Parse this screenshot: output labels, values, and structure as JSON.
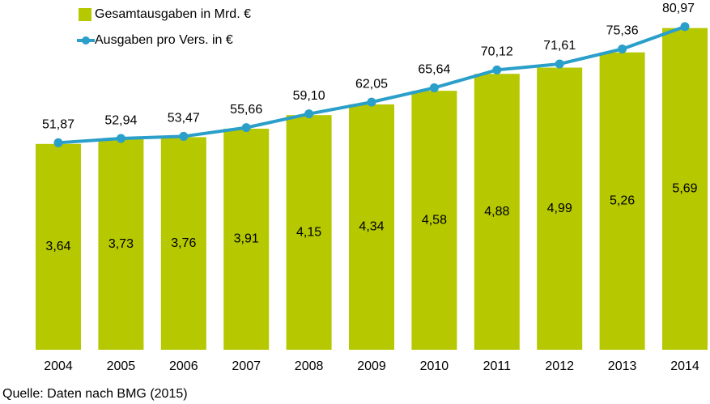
{
  "chart_data": {
    "type": "bar_line",
    "categories": [
      "2004",
      "2005",
      "2006",
      "2007",
      "2008",
      "2009",
      "2010",
      "2011",
      "2012",
      "2013",
      "2014"
    ],
    "series": [
      {
        "name": "Gesamtausgaben in Mrd. €",
        "type": "bar",
        "color": "#b5c800",
        "values": [
          3.64,
          3.73,
          3.76,
          3.91,
          4.15,
          4.34,
          4.58,
          4.88,
          4.99,
          5.26,
          5.69
        ],
        "value_labels": [
          "3,64",
          "3,73",
          "3,76",
          "3,91",
          "4,15",
          "4,34",
          "4,58",
          "4,88",
          "4,99",
          "5,26",
          "5,69"
        ]
      },
      {
        "name": "Ausgaben pro Vers. in €",
        "type": "line",
        "axis": "y2",
        "color": "#2a9fc9",
        "values": [
          51.87,
          52.94,
          53.47,
          55.66,
          59.1,
          62.05,
          65.64,
          70.12,
          71.61,
          75.36,
          80.97
        ],
        "value_labels": [
          "51,87",
          "52,94",
          "53,47",
          "55,66",
          "59,10",
          "62,05",
          "65,64",
          "70,12",
          "71,61",
          "75,36",
          "80,97"
        ]
      }
    ],
    "ylim": [
      0,
      6
    ],
    "y2lim": [
      0,
      85
    ],
    "source": "Quelle: Daten nach BMG (2015)"
  }
}
